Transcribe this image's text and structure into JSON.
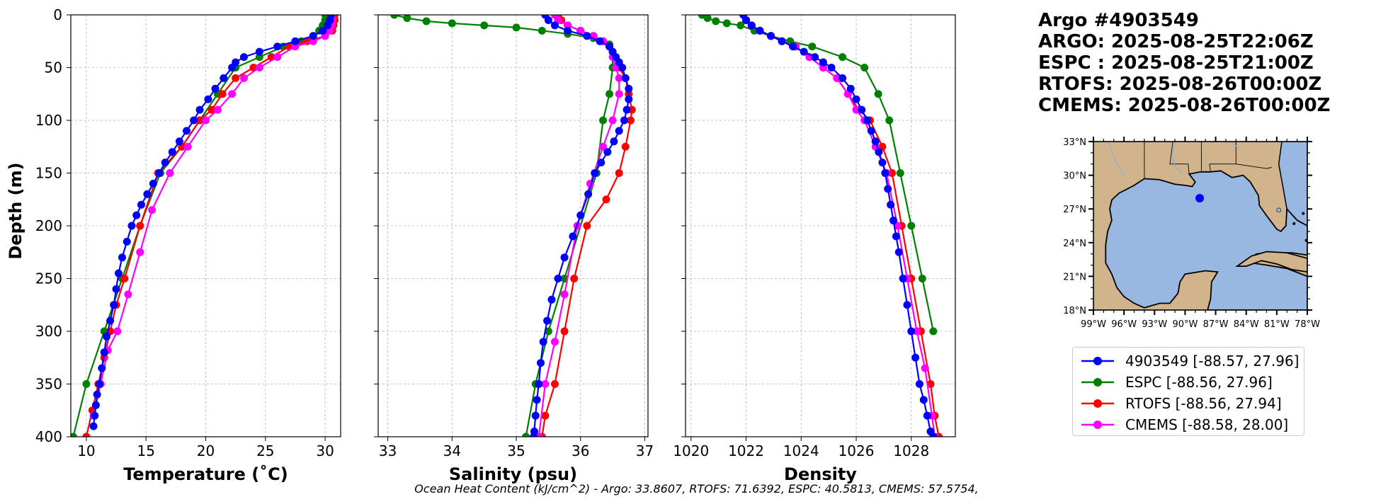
{
  "info": {
    "title": "Argo #4903549",
    "argo_time": "ARGO: 2025-08-25T22:06Z",
    "espc_time": "ESPC : 2025-08-25T21:00Z",
    "rtofs_time": "RTOFS: 2025-08-26T00:00Z",
    "cmems_time": "CMEMS: 2025-08-26T00:00Z"
  },
  "footer": "Ocean Heat Content (kJ/cm^2) - Argo: 33.8607,  RTOFS: 71.6392,  ESPC: 40.5813,  CMEMS: 57.5754,",
  "colors": {
    "argo": "#0000ff",
    "espc": "#008000",
    "rtofs": "#ff0000",
    "cmems": "#ff00ff",
    "ocean": "#98b8e2",
    "land": "#d2b48c"
  },
  "legend": [
    {
      "label": "4903549 [-88.57, 27.96]",
      "color": "#0000ff"
    },
    {
      "label": "ESPC [-88.56, 27.96]",
      "color": "#008000"
    },
    {
      "label": "RTOFS [-88.56, 27.94]",
      "color": "#ff0000"
    },
    {
      "label": "CMEMS [-88.58, 28.00]",
      "color": "#ff00ff"
    }
  ],
  "map": {
    "lat_ticks": [
      "33°N",
      "30°N",
      "27°N",
      "24°N",
      "21°N",
      "18°N"
    ],
    "lon_ticks": [
      "99°W",
      "96°W",
      "93°W",
      "90°W",
      "87°W",
      "84°W",
      "81°W",
      "78°W"
    ],
    "float_position": {
      "lon": -88.57,
      "lat": 27.96
    }
  },
  "chart_data": [
    {
      "type": "line",
      "title": "",
      "xlabel": "Temperature (˚C)",
      "ylabel": "Depth (m)",
      "xlim": [
        8.7,
        31.3
      ],
      "ylim": [
        400,
        0
      ],
      "xticks": [
        "10",
        "15",
        "20",
        "25",
        "30"
      ],
      "yticks": [
        "0",
        "50",
        "100",
        "150",
        "200",
        "250",
        "300",
        "350",
        "400"
      ],
      "grid": true,
      "series": [
        {
          "name": "4903549",
          "x": [
            30.5,
            30.4,
            30.2,
            29.8,
            29.0,
            27.5,
            26.0,
            24.5,
            23.2,
            22.5,
            22.2,
            21.5,
            20.8,
            20.2,
            19.5,
            19.0,
            18.4,
            17.8,
            17.2,
            16.6,
            16.1,
            15.6,
            15.1,
            14.6,
            14.2,
            13.8,
            13.4,
            13.0,
            12.7,
            12.5,
            12.3,
            12.0,
            11.7,
            11.5,
            11.3,
            11.1,
            10.9,
            10.8,
            10.7,
            10.6
          ],
          "y": [
            0,
            5,
            10,
            15,
            20,
            25,
            30,
            35,
            40,
            45,
            50,
            60,
            70,
            80,
            90,
            100,
            110,
            120,
            130,
            140,
            150,
            160,
            170,
            180,
            190,
            200,
            215,
            230,
            245,
            260,
            275,
            290,
            305,
            320,
            335,
            350,
            360,
            370,
            380,
            390
          ]
        },
        {
          "name": "ESPC",
          "x": [
            30.0,
            30.0,
            29.8,
            29.5,
            29.0,
            28.0,
            26.5,
            24.5,
            22.5,
            21.0,
            19.5,
            18.0,
            16.2,
            14.5,
            13.0,
            11.5,
            10.0,
            8.9
          ],
          "y": [
            0,
            5,
            10,
            15,
            20,
            25,
            30,
            40,
            50,
            75,
            100,
            125,
            150,
            200,
            250,
            300,
            350,
            400
          ]
        },
        {
          "name": "RTOFS",
          "x": [
            30.8,
            30.8,
            30.7,
            30.6,
            30.0,
            28.5,
            27.0,
            25.5,
            24.0,
            22.5,
            21.4,
            20.5,
            19.5,
            18.0,
            16.0,
            14.5,
            13.2,
            12.5,
            12.0,
            11.5,
            11.0,
            10.5,
            10.0
          ],
          "y": [
            0,
            5,
            10,
            15,
            20,
            25,
            30,
            40,
            50,
            60,
            75,
            90,
            100,
            125,
            150,
            200,
            250,
            275,
            300,
            325,
            350,
            375,
            400
          ]
        },
        {
          "name": "CMEMS",
          "x": [
            30.6,
            30.6,
            30.5,
            30.4,
            30.0,
            29.0,
            27.5,
            26.0,
            24.5,
            23.2,
            22.2,
            21.0,
            20.0,
            18.5,
            17.0,
            15.5,
            14.5,
            13.5,
            12.6,
            11.8,
            11.2,
            10.6
          ],
          "y": [
            0,
            5,
            10,
            15,
            20,
            25,
            30,
            40,
            50,
            60,
            75,
            90,
            100,
            125,
            150,
            185,
            225,
            265,
            300,
            318,
            350,
            380
          ]
        }
      ]
    },
    {
      "type": "line",
      "title": "",
      "xlabel": "Salinity (psu)",
      "ylabel": "",
      "xlim": [
        32.85,
        37.05
      ],
      "ylim": [
        400,
        0
      ],
      "xticks": [
        "33",
        "34",
        "35",
        "36",
        "37"
      ],
      "grid": true,
      "series": [
        {
          "name": "4903549",
          "x": [
            35.45,
            35.5,
            35.6,
            35.8,
            36.1,
            36.3,
            36.45,
            36.5,
            36.55,
            36.6,
            36.65,
            36.7,
            36.75,
            36.75,
            36.72,
            36.68,
            36.6,
            36.52,
            36.42,
            36.32,
            36.22,
            36.12,
            36.0,
            35.88,
            35.75,
            35.65,
            35.55,
            35.48,
            35.42,
            35.38,
            35.35,
            35.32,
            35.3,
            35.28,
            35.27
          ],
          "y": [
            0,
            5,
            10,
            15,
            20,
            25,
            30,
            35,
            40,
            45,
            50,
            60,
            70,
            80,
            90,
            100,
            110,
            120,
            130,
            140,
            150,
            170,
            190,
            210,
            230,
            250,
            270,
            290,
            310,
            330,
            350,
            365,
            380,
            395,
            400
          ]
        },
        {
          "name": "ESPC",
          "x": [
            33.1,
            33.3,
            33.6,
            34.0,
            34.5,
            35.0,
            35.4,
            35.8,
            36.2,
            36.45,
            36.5,
            36.5,
            36.45,
            36.35,
            36.25,
            35.75,
            35.5,
            35.3,
            35.15
          ],
          "y": [
            0,
            3,
            6,
            8,
            10,
            12,
            15,
            18,
            22,
            28,
            35,
            50,
            75,
            100,
            150,
            250,
            300,
            350,
            400
          ]
        },
        {
          "name": "RTOFS",
          "x": [
            35.65,
            35.7,
            35.8,
            36.0,
            36.2,
            36.35,
            36.45,
            36.55,
            36.6,
            36.7,
            36.75,
            36.8,
            36.78,
            36.7,
            36.6,
            36.4,
            36.1,
            35.9,
            35.75,
            35.6,
            35.45,
            35.4
          ],
          "y": [
            0,
            5,
            10,
            15,
            20,
            25,
            30,
            40,
            50,
            60,
            75,
            90,
            100,
            125,
            150,
            175,
            200,
            250,
            300,
            350,
            380,
            400
          ]
        },
        {
          "name": "CMEMS",
          "x": [
            35.6,
            35.65,
            35.8,
            36.0,
            36.2,
            36.35,
            36.45,
            36.5,
            36.55,
            36.6,
            36.6,
            36.5,
            36.35,
            36.15,
            35.95,
            35.75,
            35.6,
            35.45,
            35.35
          ],
          "y": [
            0,
            5,
            10,
            15,
            20,
            25,
            30,
            40,
            50,
            60,
            75,
            100,
            125,
            160,
            200,
            265,
            310,
            350,
            400
          ]
        }
      ]
    },
    {
      "type": "line",
      "title": "",
      "xlabel": "Density",
      "ylabel": "",
      "xlim": [
        1019.8,
        1029.6
      ],
      "ylim": [
        400,
        0
      ],
      "xticks": [
        "1020",
        "1022",
        "1024",
        "1026",
        "1028"
      ],
      "grid": true,
      "series": [
        {
          "name": "4903549",
          "x": [
            1021.9,
            1022.0,
            1022.2,
            1022.5,
            1022.9,
            1023.3,
            1023.7,
            1024.1,
            1024.5,
            1024.8,
            1025.1,
            1025.5,
            1025.8,
            1026.0,
            1026.2,
            1026.4,
            1026.55,
            1026.7,
            1026.82,
            1026.95,
            1027.05,
            1027.15,
            1027.25,
            1027.35,
            1027.45,
            1027.55,
            1027.7,
            1027.85,
            1028.0,
            1028.15,
            1028.3,
            1028.45,
            1028.58,
            1028.7,
            1028.8
          ],
          "y": [
            0,
            5,
            10,
            15,
            20,
            25,
            30,
            35,
            40,
            45,
            50,
            60,
            70,
            80,
            90,
            100,
            110,
            120,
            130,
            140,
            150,
            165,
            180,
            195,
            210,
            225,
            250,
            275,
            300,
            325,
            350,
            365,
            380,
            395,
            400
          ]
        },
        {
          "name": "ESPC",
          "x": [
            1020.4,
            1020.6,
            1020.9,
            1021.3,
            1021.8,
            1022.3,
            1022.9,
            1023.6,
            1024.4,
            1025.5,
            1026.3,
            1026.8,
            1027.2,
            1027.6,
            1028.0,
            1028.4,
            1028.8
          ],
          "y": [
            0,
            3,
            6,
            8,
            10,
            15,
            20,
            25,
            30,
            40,
            50,
            75,
            100,
            150,
            200,
            250,
            300
          ]
        },
        {
          "name": "RTOFS",
          "x": [
            1021.9,
            1022.0,
            1022.2,
            1022.5,
            1022.9,
            1023.3,
            1023.8,
            1024.3,
            1024.8,
            1025.3,
            1025.7,
            1026.1,
            1026.5,
            1026.95,
            1027.3,
            1027.65,
            1028.0,
            1028.35,
            1028.7,
            1028.85,
            1029.0
          ],
          "y": [
            0,
            5,
            10,
            15,
            20,
            25,
            30,
            40,
            50,
            60,
            75,
            90,
            100,
            125,
            150,
            200,
            250,
            300,
            350,
            380,
            400
          ]
        },
        {
          "name": "CMEMS",
          "x": [
            1021.9,
            1022.0,
            1022.2,
            1022.5,
            1022.9,
            1023.3,
            1023.8,
            1024.3,
            1024.8,
            1025.3,
            1025.7,
            1026.0,
            1026.3,
            1026.7,
            1027.1,
            1027.5,
            1027.85,
            1028.2,
            1028.5,
            1028.75,
            1028.85
          ],
          "y": [
            0,
            5,
            10,
            15,
            20,
            25,
            30,
            40,
            50,
            60,
            75,
            90,
            100,
            125,
            150,
            200,
            250,
            300,
            335,
            380,
            400
          ]
        }
      ]
    }
  ]
}
